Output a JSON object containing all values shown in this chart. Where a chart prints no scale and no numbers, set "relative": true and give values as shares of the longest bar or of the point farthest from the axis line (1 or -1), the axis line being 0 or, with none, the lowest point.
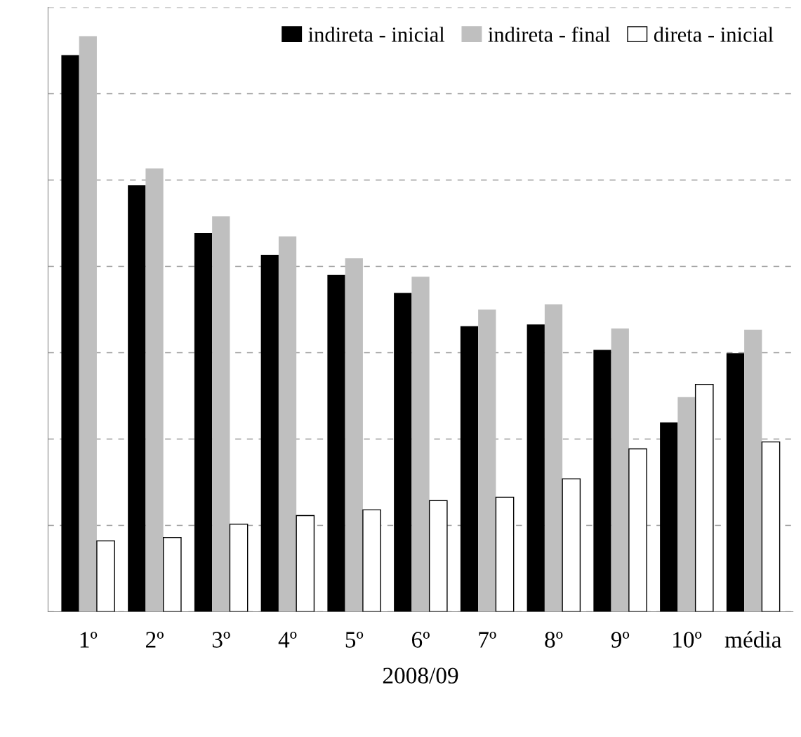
{
  "chart_data": {
    "type": "bar",
    "relative": true,
    "xlabel": "2008/09",
    "categories": [
      "1º",
      "2º",
      "3º",
      "4º",
      "5º",
      "6º",
      "7º",
      "8º",
      "9º",
      "10º",
      "média"
    ],
    "series": [
      {
        "name": "indireta - inicial",
        "color": "#000000",
        "values": [
          0.967,
          0.741,
          0.658,
          0.62,
          0.585,
          0.554,
          0.496,
          0.499,
          0.455,
          0.329,
          0.449
        ]
      },
      {
        "name": "indireta - final",
        "color": "#bfbfbf",
        "values": [
          1.0,
          0.77,
          0.687,
          0.652,
          0.614,
          0.582,
          0.525,
          0.534,
          0.492,
          0.373,
          0.49
        ]
      },
      {
        "name": "direta - inicial",
        "color": "#ffffff",
        "values": [
          0.123,
          0.129,
          0.152,
          0.167,
          0.177,
          0.193,
          0.199,
          0.231,
          0.283,
          0.395,
          0.295
        ]
      }
    ],
    "legend": "top right",
    "grid": "y"
  }
}
